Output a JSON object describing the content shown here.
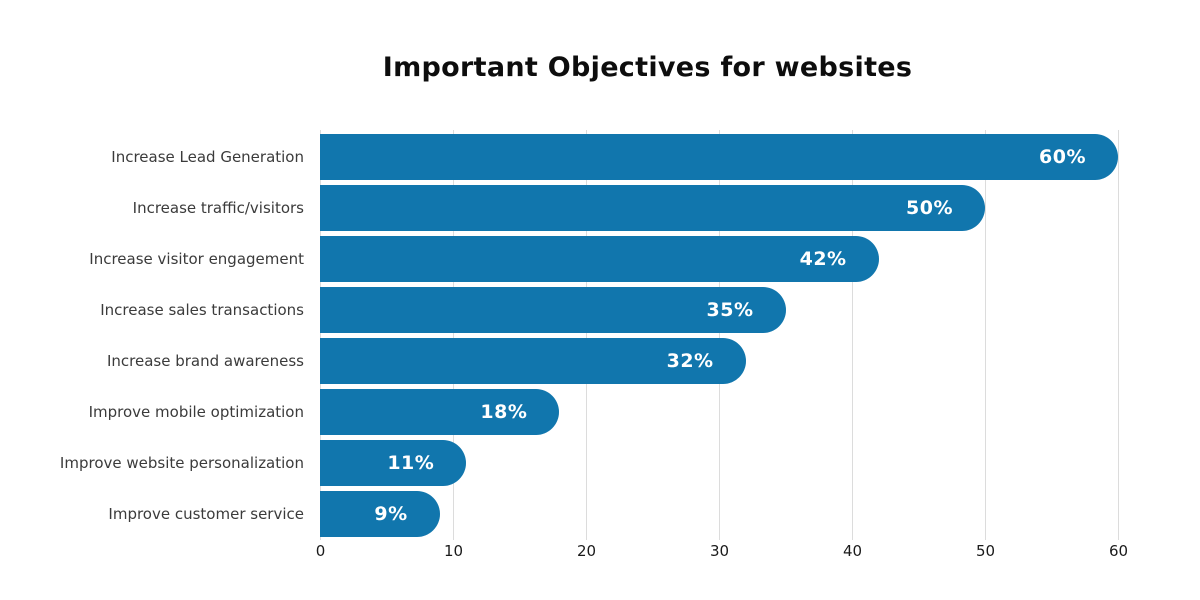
{
  "title": "Important Objectives for websites",
  "colors": {
    "bar": "#1176ad",
    "value_label": "#ffffff",
    "category_label": "#3b3b3b",
    "title": "#0d0d0d",
    "gridline": "#dcdcdc",
    "tick_label": "#1a1a1a",
    "background": "#ffffff"
  },
  "chart_data": {
    "type": "bar",
    "orientation": "horizontal",
    "title": "Important Objectives for websites",
    "categories": [
      "Increase Lead Generation",
      "Increase traffic/visitors",
      "Increase visitor engagement",
      "Increase sales transactions",
      "Increase brand awareness",
      "Improve mobile optimization",
      "Improve website personalization",
      "Improve customer service"
    ],
    "values": [
      60,
      50,
      42,
      35,
      32,
      18,
      11,
      9
    ],
    "value_labels": [
      "60%",
      "50%",
      "42%",
      "35%",
      "32%",
      "18%",
      "11%",
      "9%"
    ],
    "xlabel": "",
    "ylabel": "",
    "x_ticks": [
      0,
      10,
      20,
      30,
      40,
      50,
      60
    ],
    "xlim": [
      0,
      62.5
    ],
    "grid": "vertical",
    "legend": "none",
    "bar_style": "flat-left-rounded-right-pill",
    "value_label_position": "inside-right"
  }
}
